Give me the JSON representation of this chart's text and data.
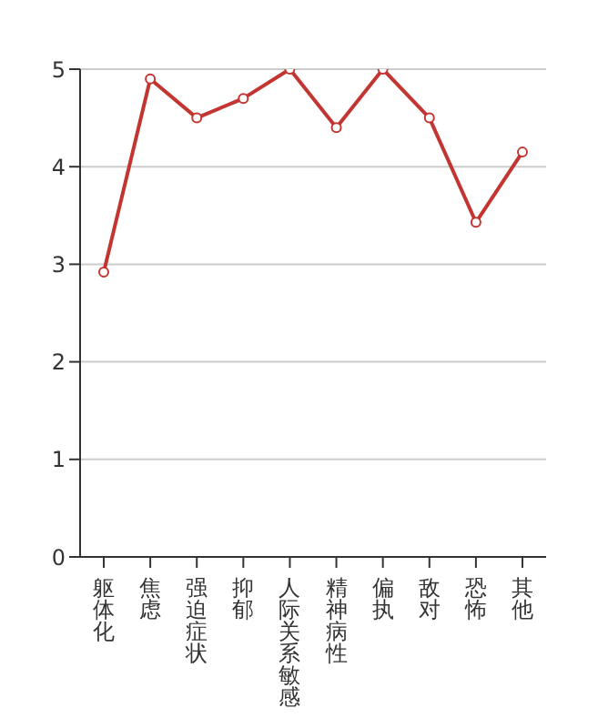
{
  "chart_data": {
    "type": "line",
    "categories": [
      "躯体化",
      "焦虑",
      "强迫症状",
      "抑郁",
      "人际关系敏感",
      "精神病性",
      "偏执",
      "敌对",
      "恐怖",
      "其他"
    ],
    "series": [
      {
        "color": "#c23531",
        "values": [
          2.92,
          4.9,
          4.5,
          4.7,
          5.0,
          4.4,
          5.0,
          4.5,
          3.43,
          4.15
        ]
      }
    ],
    "ylim": [
      0,
      5
    ],
    "yticks": [
      0,
      1,
      2,
      3,
      4,
      5
    ],
    "grid": "y",
    "marker": "circle",
    "line_style": "solid"
  }
}
